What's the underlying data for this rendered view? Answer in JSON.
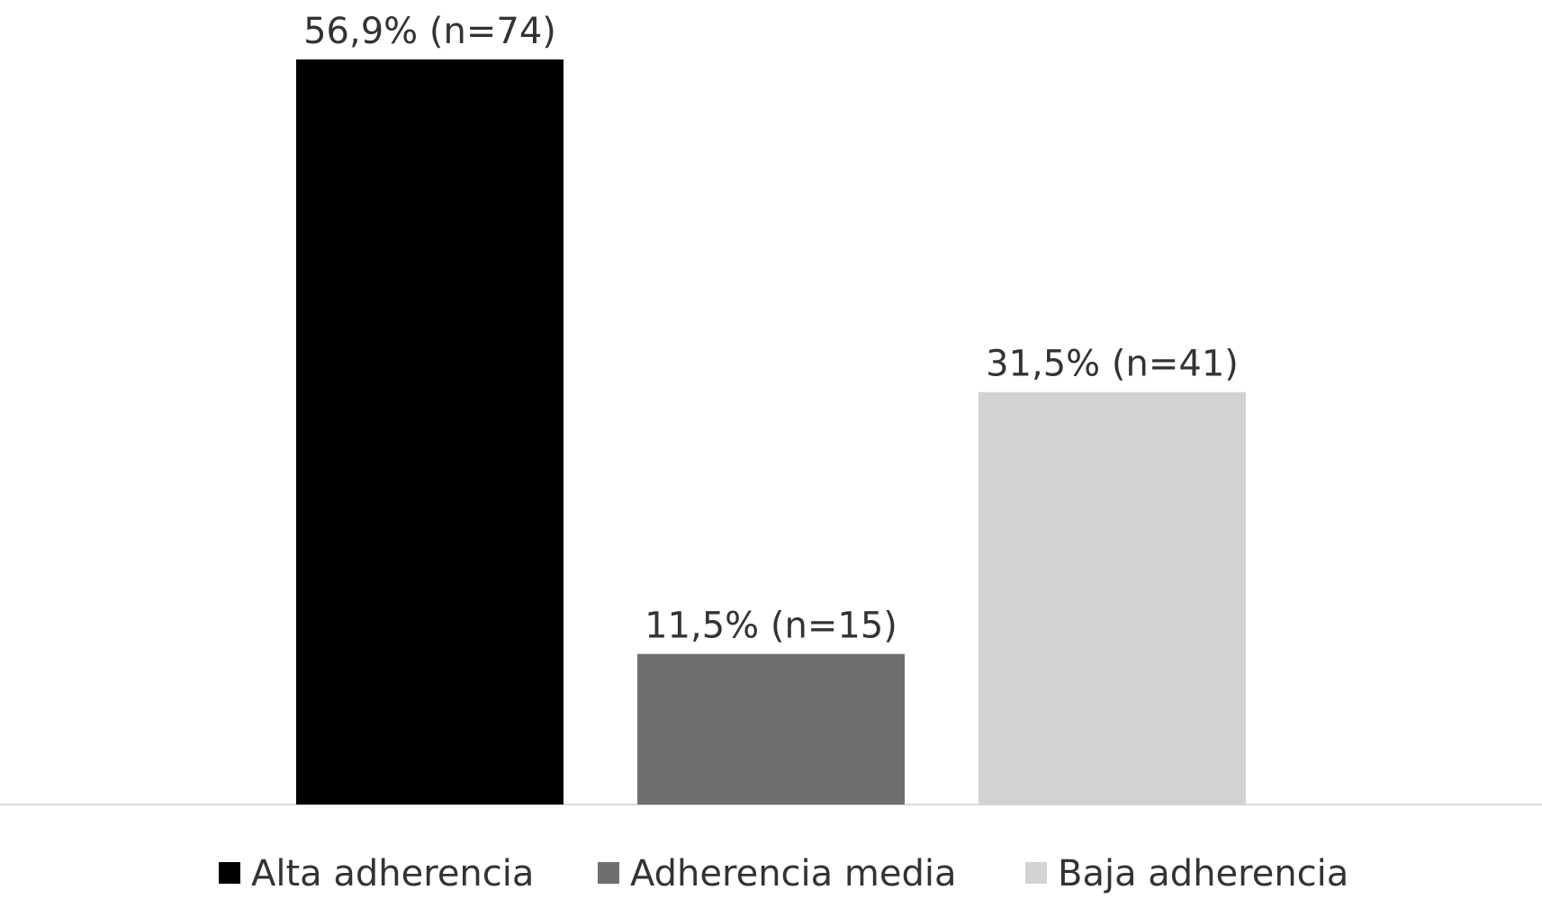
{
  "chart_data": {
    "type": "bar",
    "series": [
      {
        "name": "Alta adherencia",
        "color": "#000000",
        "values": [
          56.9
        ],
        "value_labels": [
          "56,9% (n=74)"
        ]
      },
      {
        "name": "Adherencia media",
        "color": "#6f6f6f",
        "values": [
          11.5
        ],
        "value_labels": [
          "11,5% (n=15)"
        ]
      },
      {
        "name": "Baja adherencia",
        "color": "#d3d3d3",
        "values": [
          31.5
        ],
        "value_labels": [
          "31,5% (n=41)"
        ]
      }
    ],
    "legend": "bottom"
  }
}
